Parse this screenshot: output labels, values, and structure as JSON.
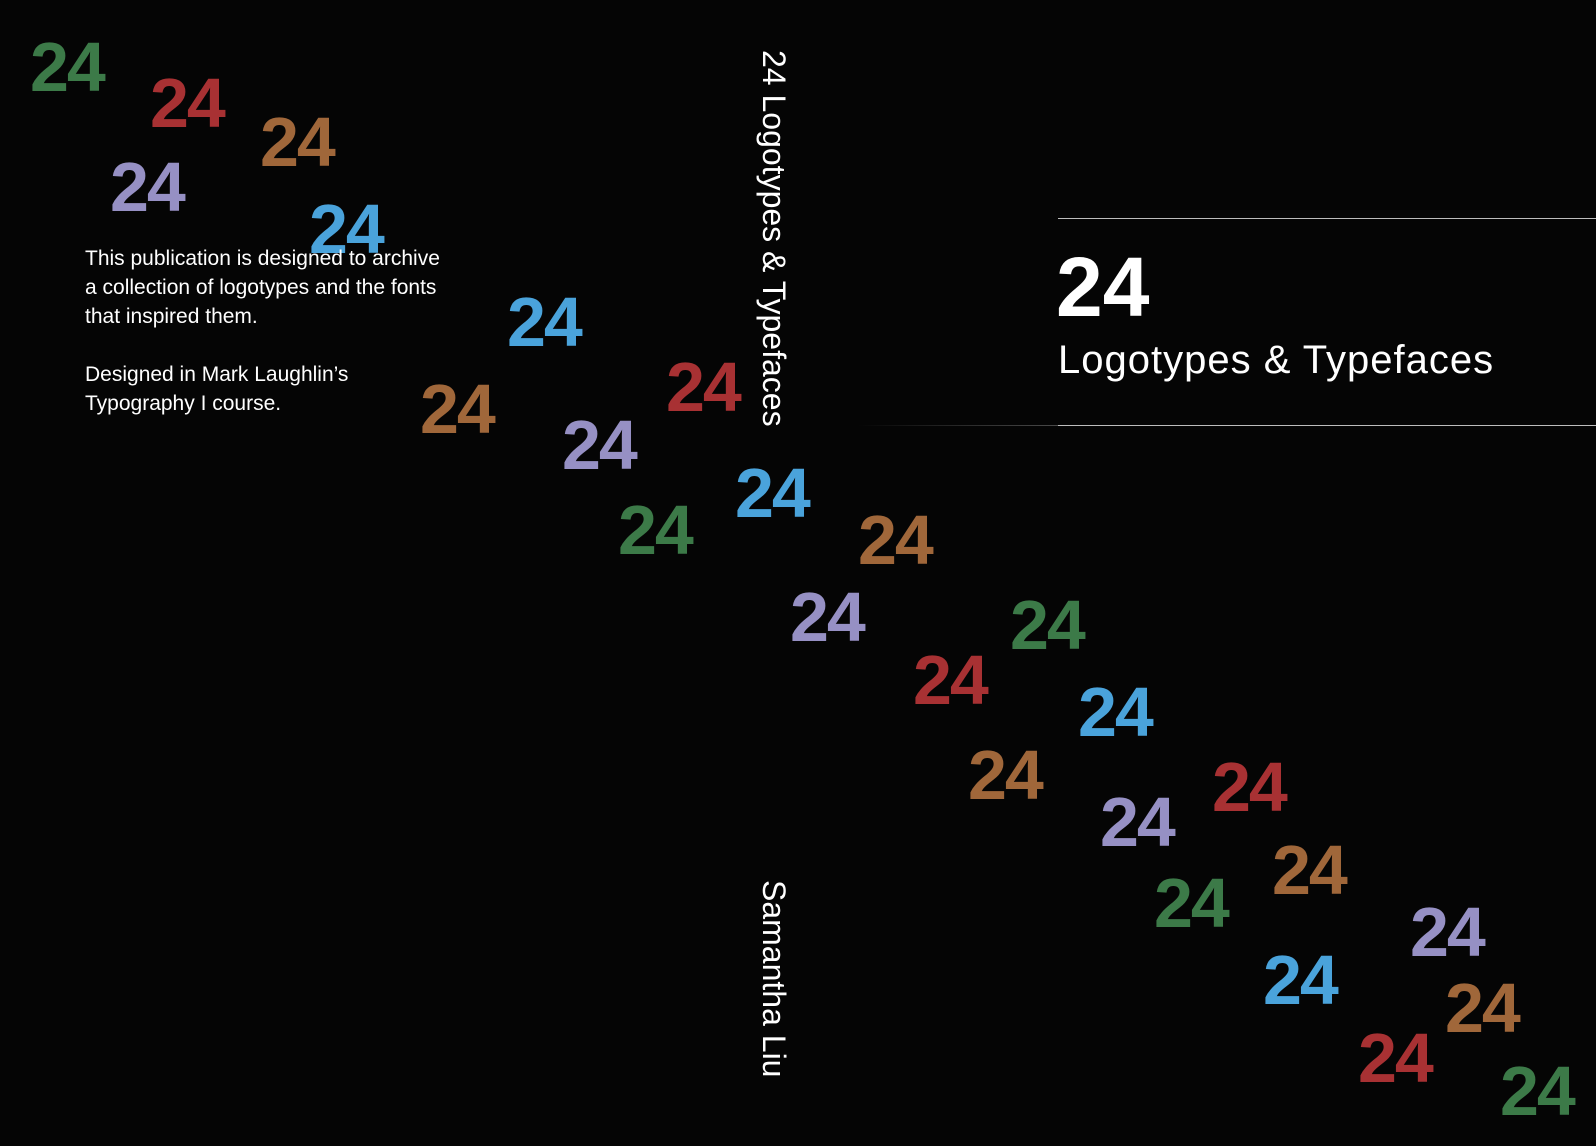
{
  "colors": {
    "background": "#050505",
    "green": "#3c7a48",
    "red": "#a83133",
    "brown": "#a0673a",
    "lavender": "#9690c4",
    "blue": "#4aa3db",
    "text": "#ffffff"
  },
  "decorative_numbers": [
    {
      "text": "24",
      "color": "green"
    },
    {
      "text": "24",
      "color": "red"
    },
    {
      "text": "24",
      "color": "brown"
    },
    {
      "text": "24",
      "color": "lavender"
    },
    {
      "text": "24",
      "color": "blue"
    },
    {
      "text": "24",
      "color": "blue"
    },
    {
      "text": "24",
      "color": "red"
    },
    {
      "text": "24",
      "color": "brown"
    },
    {
      "text": "24",
      "color": "lavender"
    },
    {
      "text": "24",
      "color": "blue"
    },
    {
      "text": "24",
      "color": "green"
    },
    {
      "text": "24",
      "color": "brown"
    },
    {
      "text": "24",
      "color": "lavender"
    },
    {
      "text": "24",
      "color": "green"
    },
    {
      "text": "24",
      "color": "red"
    },
    {
      "text": "24",
      "color": "blue"
    },
    {
      "text": "24",
      "color": "brown"
    },
    {
      "text": "24",
      "color": "lavender"
    },
    {
      "text": "24",
      "color": "red"
    },
    {
      "text": "24",
      "color": "green"
    },
    {
      "text": "24",
      "color": "brown"
    },
    {
      "text": "24",
      "color": "blue"
    },
    {
      "text": "24",
      "color": "lavender"
    },
    {
      "text": "24",
      "color": "brown"
    },
    {
      "text": "24",
      "color": "red"
    },
    {
      "text": "24",
      "color": "green"
    }
  ],
  "back_cover": {
    "paragraph_1_line_1": "This publication is designed to archive",
    "paragraph_1_line_2": "a collection of logotypes and the fonts",
    "paragraph_1_line_3": "that inspired them.",
    "paragraph_2_line_1": "Designed in Mark Laughlin’s",
    "paragraph_2_line_2": "Typography I course."
  },
  "spine": {
    "title": "24 Logotypes & Typefaces",
    "author": "Samantha Liu"
  },
  "front_cover": {
    "number": "24",
    "subtitle": "Logotypes & Typefaces"
  }
}
